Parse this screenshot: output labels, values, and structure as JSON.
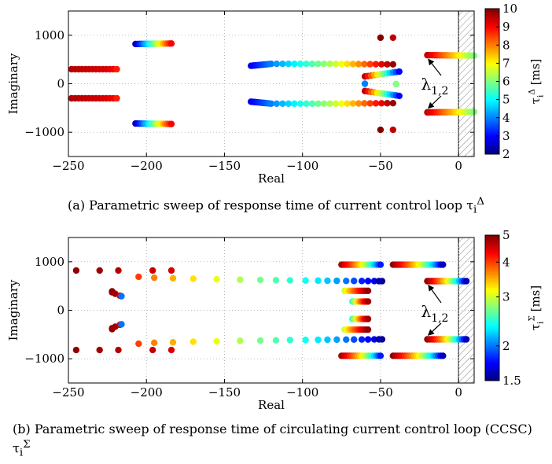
{
  "chart_data": [
    {
      "type": "scatter",
      "xlabel": "Real",
      "ylabel": "Imaginary",
      "xlim": [
        -250,
        10
      ],
      "ylim": [
        -1500,
        1500
      ],
      "xticks": [
        -250,
        -200,
        -150,
        -100,
        -50,
        0
      ],
      "yticks": [
        -1000,
        0,
        1000
      ],
      "xtick_labels": [
        "−250",
        "−200",
        "−150",
        "−100",
        "−50",
        "0"
      ],
      "ytick_labels": [
        "−1000",
        "0",
        "1000"
      ],
      "grid": true,
      "hatched_region_from_x": 0,
      "colorbar": {
        "label_base": "τ",
        "label_sub": "i",
        "label_sup": "Δ",
        "label_unit": " [ms]",
        "range": [
          2,
          10
        ],
        "ticks": [
          "2",
          "3",
          "4",
          "5",
          "6",
          "7",
          "8",
          "9",
          "10"
        ],
        "scale": "linear"
      },
      "annotation": {
        "base": "λ",
        "sub": "1,2"
      },
      "annotation_targets": [
        [
          -18,
          590
        ],
        [
          -18,
          -590
        ]
      ],
      "series": [
        {
          "x": [
            -248,
            -226,
            -219,
            -219
          ],
          "y": [
            300,
            300,
            300,
            300
          ],
          "tau": [
            9.6,
            9.3,
            9.0,
            8.8
          ],
          "n": 14
        },
        {
          "x": [
            -248,
            -226,
            -219,
            -219
          ],
          "y": [
            -300,
            -300,
            -300,
            -300
          ],
          "tau": [
            9.6,
            9.3,
            9.0,
            8.8
          ],
          "n": 14
        },
        {
          "x": [
            -207,
            -184
          ],
          "y": [
            820,
            830
          ],
          "tau": [
            2.5,
            9.0
          ],
          "n": 18
        },
        {
          "x": [
            -207,
            -184
          ],
          "y": [
            -820,
            -830
          ],
          "tau": [
            2.5,
            9.0
          ],
          "n": 18
        },
        {
          "x": [
            -133,
            -120,
            -80,
            -42
          ],
          "y": [
            370,
            410,
            410,
            400
          ],
          "tau": [
            2.8,
            4.0,
            6.5,
            9.8
          ],
          "n": 33
        },
        {
          "x": [
            -133,
            -120,
            -80,
            -42
          ],
          "y": [
            -370,
            -410,
            -410,
            -400
          ],
          "tau": [
            2.8,
            4.0,
            6.5,
            9.8
          ],
          "n": 33
        },
        {
          "x": [
            -42,
            -50
          ],
          "y": [
            950,
            950
          ],
          "tau": [
            9.5,
            10
          ],
          "n": 1
        },
        {
          "x": [
            -42,
            -50
          ],
          "y": [
            -950,
            -950
          ],
          "tau": [
            9.5,
            10
          ],
          "n": 1
        },
        {
          "x": [
            -60,
            -40
          ],
          "y": [
            0,
            -5
          ],
          "tau": [
            4.0,
            6.0
          ],
          "n": 2
        },
        {
          "x": [
            -60,
            -38
          ],
          "y": [
            150,
            250
          ],
          "tau": [
            9.5,
            3.0
          ],
          "n": 12
        },
        {
          "x": [
            -60,
            -38
          ],
          "y": [
            -150,
            -250
          ],
          "tau": [
            9.5,
            3.0
          ],
          "n": 12
        },
        {
          "x": [
            -20,
            10
          ],
          "y": [
            590,
            580
          ],
          "tau": [
            9.5,
            6.0
          ],
          "n": 20
        },
        {
          "x": [
            -20,
            10
          ],
          "y": [
            -590,
            -580
          ],
          "tau": [
            9.5,
            6.0
          ],
          "n": 20
        }
      ]
    },
    {
      "type": "scatter",
      "xlabel": "Real",
      "ylabel": "Imaginary",
      "xlim": [
        -250,
        10
      ],
      "ylim": [
        -1500,
        1500
      ],
      "xticks": [
        -250,
        -200,
        -150,
        -100,
        -50,
        0
      ],
      "yticks": [
        -1000,
        0,
        1000
      ],
      "xtick_labels": [
        "−250",
        "−200",
        "−150",
        "−100",
        "−50",
        "0"
      ],
      "ytick_labels": [
        "−1000",
        "0",
        "1000"
      ],
      "grid": true,
      "hatched_region_from_x": 0,
      "colorbar": {
        "label_base": "τ",
        "label_sub": "i",
        "label_sup": "Σ",
        "label_unit": " [ms]",
        "range": [
          1.5,
          5
        ],
        "ticks": [
          "1.5",
          "2",
          "3",
          "4",
          "5"
        ],
        "tick_values": [
          1.5,
          2,
          3,
          4,
          5
        ],
        "scale": "log"
      },
      "annotation": {
        "base": "λ",
        "sub": "1,2"
      },
      "annotation_targets": [
        [
          -18,
          600
        ],
        [
          -18,
          -600
        ]
      ],
      "series": [
        {
          "x": [
            -245,
            -230,
            -218,
            -196,
            -184
          ],
          "y": [
            820,
            820,
            820,
            820,
            820
          ],
          "tau": [
            4.9,
            4.8,
            4.7,
            4.6,
            4.5
          ],
          "n": 0
        },
        {
          "x": [
            -245,
            -230,
            -218,
            -196,
            -184
          ],
          "y": [
            -820,
            -820,
            -820,
            -820,
            -820
          ],
          "tau": [
            4.9,
            4.8,
            4.7,
            4.6,
            4.5
          ],
          "n": 0
        },
        {
          "x": [
            -205,
            -195,
            -183,
            -170,
            -155,
            -140,
            -127,
            -117,
            -108,
            -98,
            -90,
            -84,
            -78,
            -72,
            -67,
            -62,
            -58,
            -54,
            -51,
            -49
          ],
          "y": [
            690,
            670,
            660,
            650,
            640,
            630,
            625,
            620,
            615,
            612,
            610,
            608,
            606,
            605,
            604,
            603,
            602,
            601,
            600,
            600
          ],
          "tau": [
            4.0,
            3.7,
            3.5,
            3.3,
            3.1,
            2.9,
            2.7,
            2.6,
            2.5,
            2.4,
            2.3,
            2.2,
            2.1,
            2.0,
            1.9,
            1.8,
            1.75,
            1.7,
            1.6,
            1.55
          ],
          "n": 0
        },
        {
          "x": [
            -205,
            -195,
            -183,
            -170,
            -155,
            -140,
            -127,
            -117,
            -108,
            -98,
            -90,
            -84,
            -78,
            -72,
            -67,
            -62,
            -58,
            -54,
            -51,
            -49
          ],
          "y": [
            -690,
            -670,
            -660,
            -650,
            -640,
            -630,
            -625,
            -620,
            -615,
            -612,
            -610,
            -608,
            -606,
            -605,
            -604,
            -603,
            -602,
            -601,
            -600,
            -600
          ],
          "tau": [
            4.0,
            3.7,
            3.5,
            3.3,
            3.1,
            2.9,
            2.7,
            2.6,
            2.5,
            2.4,
            2.3,
            2.2,
            2.1,
            2.0,
            1.9,
            1.8,
            1.75,
            1.7,
            1.6,
            1.55
          ],
          "n": 0
        },
        {
          "x": [
            -222,
            -222,
            -220,
            -217,
            -216
          ],
          "y": [
            390,
            370,
            340,
            300,
            290
          ],
          "tau": [
            5.0,
            4.9,
            4.8,
            4.5,
            2.0
          ],
          "n": 0
        },
        {
          "x": [
            -222,
            -222,
            -220,
            -217,
            -216
          ],
          "y": [
            -390,
            -370,
            -340,
            -300,
            -290
          ],
          "tau": [
            5.0,
            4.9,
            4.8,
            4.5,
            2.0
          ],
          "n": 0
        },
        {
          "x": [
            -75,
            -50
          ],
          "y": [
            940,
            940
          ],
          "tau": [
            4.8,
            1.8
          ],
          "n": 20
        },
        {
          "x": [
            -75,
            -50
          ],
          "y": [
            -940,
            -940
          ],
          "tau": [
            4.8,
            1.8
          ],
          "n": 20
        },
        {
          "x": [
            -73,
            -58
          ],
          "y": [
            400,
            400
          ],
          "tau": [
            3.0,
            4.9
          ],
          "n": 12
        },
        {
          "x": [
            -73,
            -58
          ],
          "y": [
            -400,
            -400
          ],
          "tau": [
            3.0,
            4.9
          ],
          "n": 12
        },
        {
          "x": [
            -68,
            -58
          ],
          "y": [
            180,
            180
          ],
          "tau": [
            2.5,
            4.8
          ],
          "n": 10
        },
        {
          "x": [
            -68,
            -58
          ],
          "y": [
            -180,
            -180
          ],
          "tau": [
            2.5,
            4.8
          ],
          "n": 10
        },
        {
          "x": [
            -42,
            -10
          ],
          "y": [
            940,
            940
          ],
          "tau": [
            4.9,
            1.6
          ],
          "n": 22
        },
        {
          "x": [
            -42,
            -10
          ],
          "y": [
            -940,
            -940
          ],
          "tau": [
            4.9,
            1.6
          ],
          "n": 22
        },
        {
          "x": [
            -20,
            5
          ],
          "y": [
            600,
            600
          ],
          "tau": [
            4.9,
            1.6
          ],
          "n": 18
        },
        {
          "x": [
            -20,
            5
          ],
          "y": [
            -600,
            -600
          ],
          "tau": [
            4.9,
            1.6
          ],
          "n": 18
        }
      ]
    }
  ],
  "captions": {
    "a_text": "(a) Parametric sweep of response time of current control loop τ",
    "a_sub": "i",
    "a_sup": "Δ",
    "b_text": "(b) Parametric sweep of response time of circulating current control loop (CCSC) τ",
    "b_sub": "i",
    "b_sup": "Σ"
  }
}
